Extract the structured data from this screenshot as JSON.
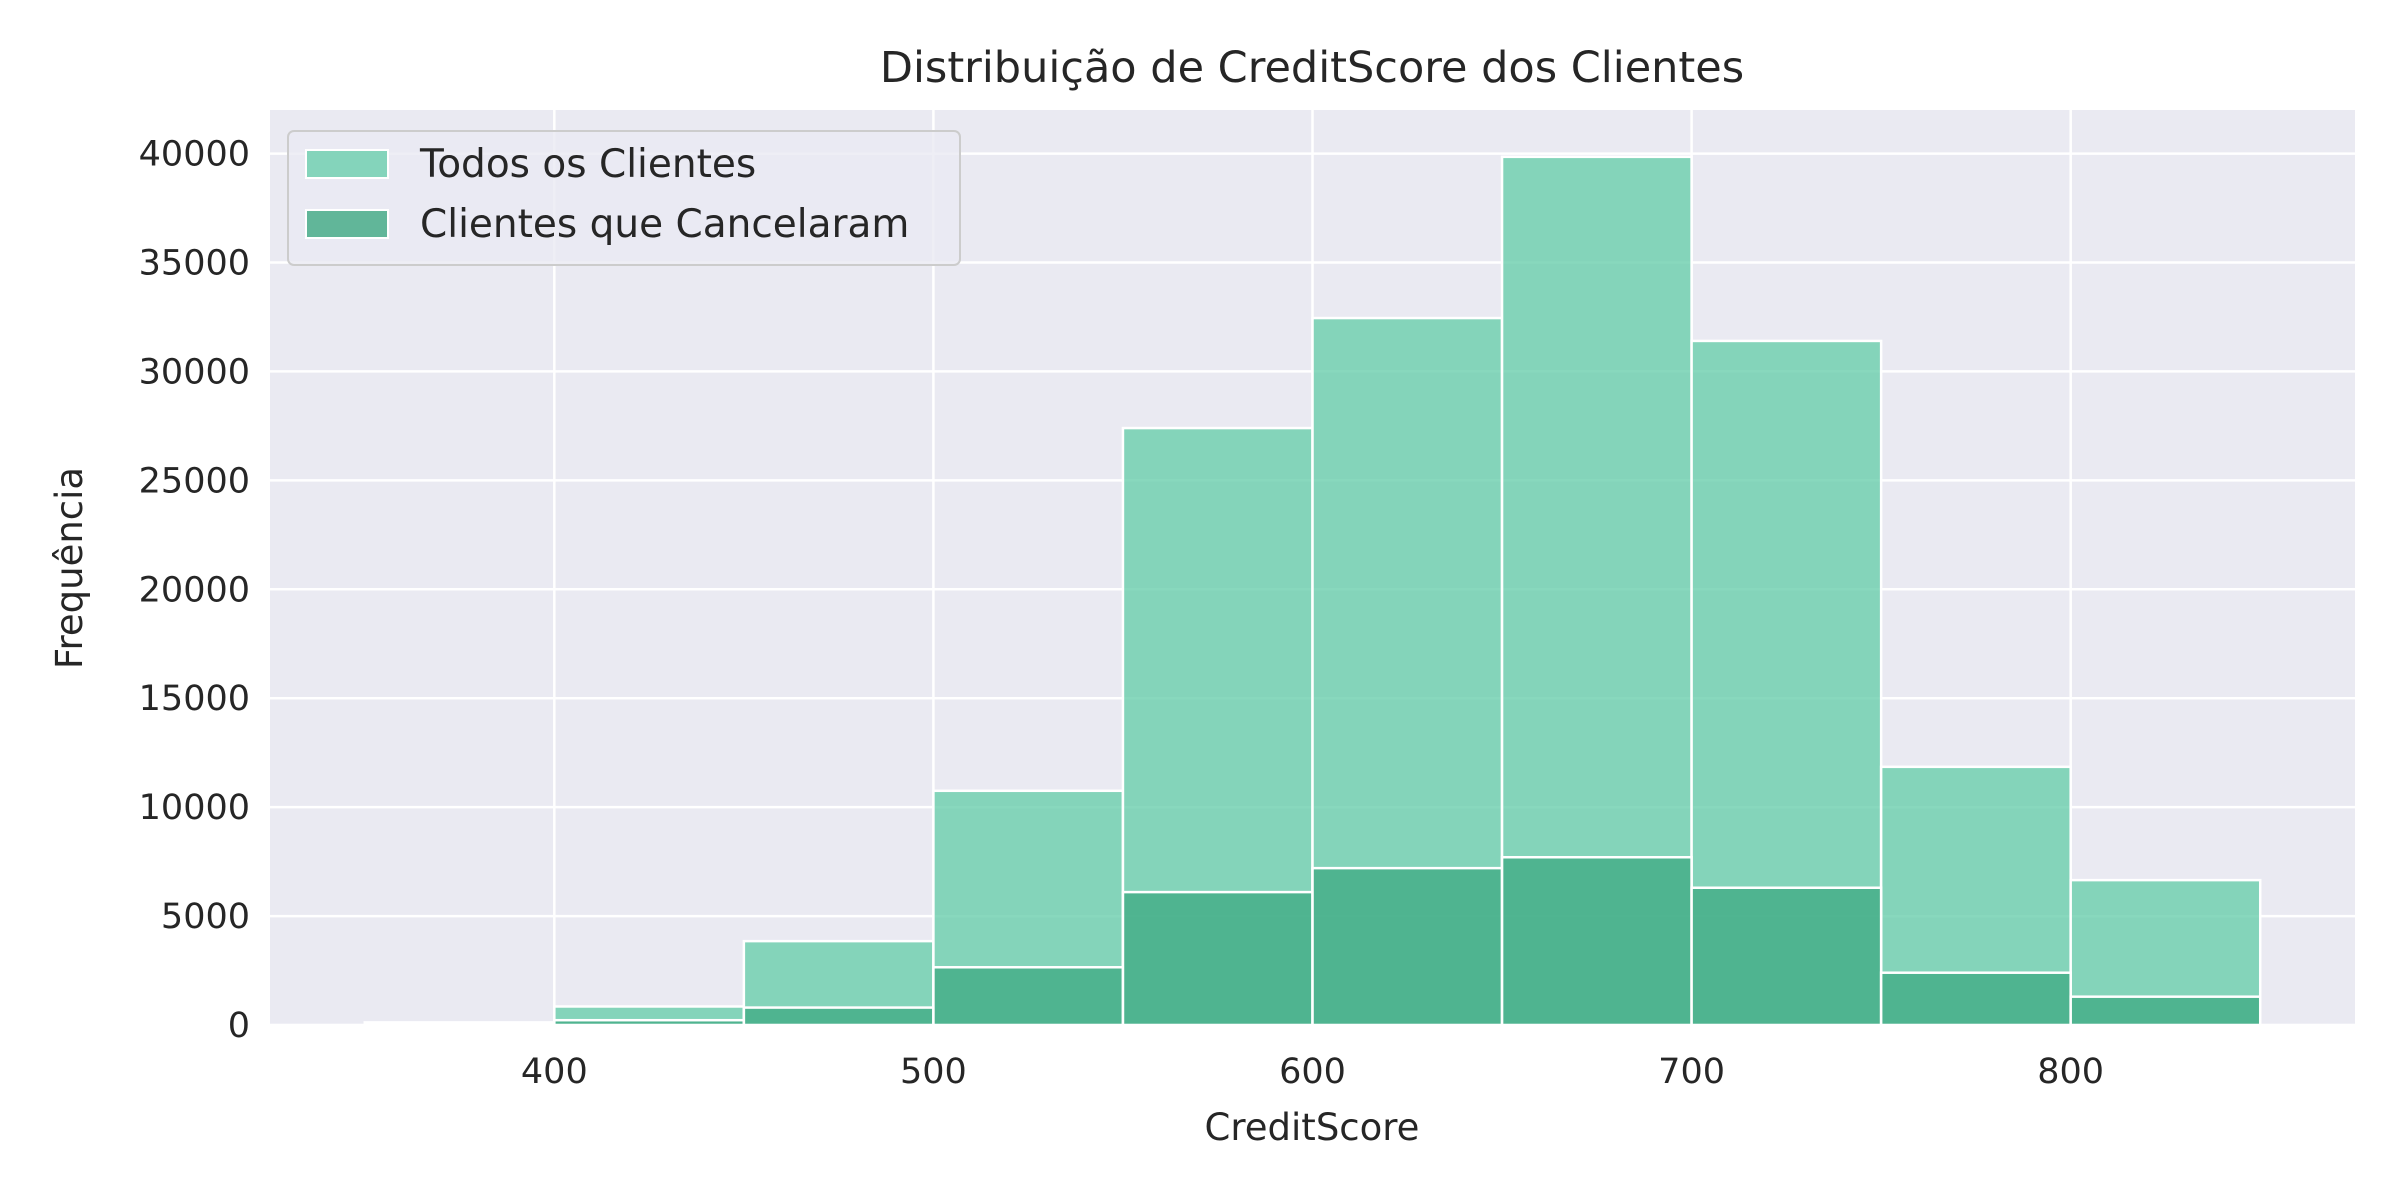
{
  "chart_data": {
    "type": "bar",
    "title": "Distribuição de CreditScore dos Clientes",
    "xlabel": "CreditScore",
    "ylabel": "Frequência",
    "xlim": [
      325,
      875
    ],
    "ylim": [
      0,
      42000
    ],
    "x_ticks": [
      400,
      500,
      600,
      700,
      800
    ],
    "y_ticks": [
      0,
      5000,
      10000,
      15000,
      20000,
      25000,
      30000,
      35000,
      40000
    ],
    "grid": true,
    "legend_position": "top-left",
    "bin_edges": [
      350,
      400,
      450,
      500,
      550,
      600,
      650,
      700,
      750,
      800,
      850
    ],
    "series": [
      {
        "name": "Todos os Clientes",
        "color": "#66cdaa",
        "values": [
          120,
          850,
          3850,
          10750,
          27400,
          32450,
          39850,
          31400,
          11850,
          6650
        ]
      },
      {
        "name": "Clientes que Cancelaram",
        "color": "#3aa77f",
        "values": [
          20,
          220,
          800,
          2650,
          6100,
          7200,
          7700,
          6300,
          2400,
          1300
        ]
      }
    ]
  }
}
